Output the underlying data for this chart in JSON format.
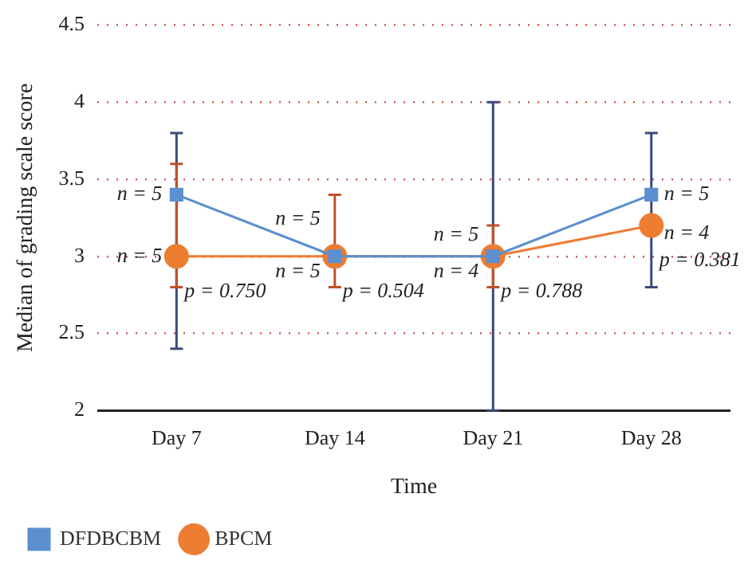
{
  "chart_data": {
    "type": "line",
    "xlabel": "Time",
    "ylabel": "Median of grading scale score",
    "categories": [
      "Day 7",
      "Day 14",
      "Day 21",
      "Day 28"
    ],
    "series": [
      {
        "name": "DFDBCBM",
        "color": "#5b8fd0",
        "values": [
          3.4,
          3,
          3,
          3.4
        ],
        "errors": [
          [
            2.4,
            3.8
          ],
          null,
          [
            2,
            4
          ],
          [
            2.8,
            3.8
          ]
        ],
        "marker": "square"
      },
      {
        "name": "BPCM",
        "color": "#ed7d31",
        "values": [
          3,
          3,
          3,
          3.2
        ],
        "errors": [
          [
            2.8,
            3.6
          ],
          [
            2.8,
            3.4
          ],
          [
            2.8,
            3.2
          ],
          null
        ],
        "marker": "circle"
      }
    ],
    "ylim": [
      2,
      4.5
    ],
    "yticks": [
      2,
      2.5,
      3,
      3.5,
      4,
      4.5
    ],
    "grid": "y",
    "legend": "bottom left",
    "line_style": "solid",
    "annotations": [
      {
        "text": "n = 5",
        "x": "Day 7",
        "y": 3.4
      },
      {
        "text": "n = 5",
        "x": "Day 7",
        "y": 3
      },
      {
        "text": "n = 5",
        "x": "Day 14",
        "y": 3.24
      },
      {
        "text": "n = 5",
        "x": "Day 14",
        "y": 2.9
      },
      {
        "text": "n = 5",
        "x": "Day 21",
        "y": 3.14
      },
      {
        "text": "n = 4",
        "x": "Day 21",
        "y": 2.9
      },
      {
        "text": "n = 5",
        "x": "Day 28",
        "y": 3.4
      },
      {
        "text": "n = 4",
        "x": "Day 28",
        "y": 3.15
      },
      "p = 0.750",
      "p = 0.504",
      "p = 0.788",
      "p = 0.381"
    ]
  }
}
